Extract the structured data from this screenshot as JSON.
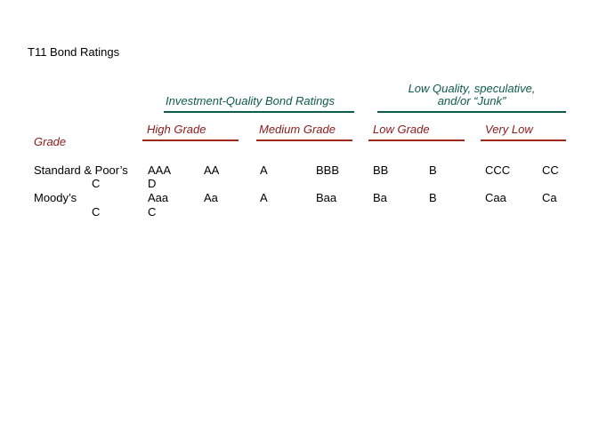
{
  "title": "T11   Bond Ratings",
  "group_headers": {
    "investment": "Investment-Quality Bond Ratings",
    "low_quality_line1": "Low Quality, speculative,",
    "low_quality_line2": "and/or “Junk”"
  },
  "grade_headers": {
    "row_label": "Grade",
    "high": "High Grade",
    "medium": "Medium Grade",
    "low": "Low Grade",
    "very_low": "Very Low"
  },
  "rows": {
    "sp": {
      "label": "Standard & Poor’s",
      "ratings": [
        "AAA",
        "AA",
        "A",
        "BBB",
        "BB",
        "B",
        "CCC",
        "CC"
      ],
      "wrap": [
        "C",
        "D"
      ]
    },
    "moodys": {
      "label": "Moody’s",
      "ratings": [
        "Aaa",
        "Aa",
        "A",
        "Baa",
        "Ba",
        "B",
        "Caa",
        "Ca"
      ],
      "wrap": [
        "C",
        "C"
      ]
    }
  },
  "colors": {
    "header_text": "#8b1a1a",
    "investment_rule": "#0d5b4a",
    "grade_rule": "#9b2c1a"
  }
}
